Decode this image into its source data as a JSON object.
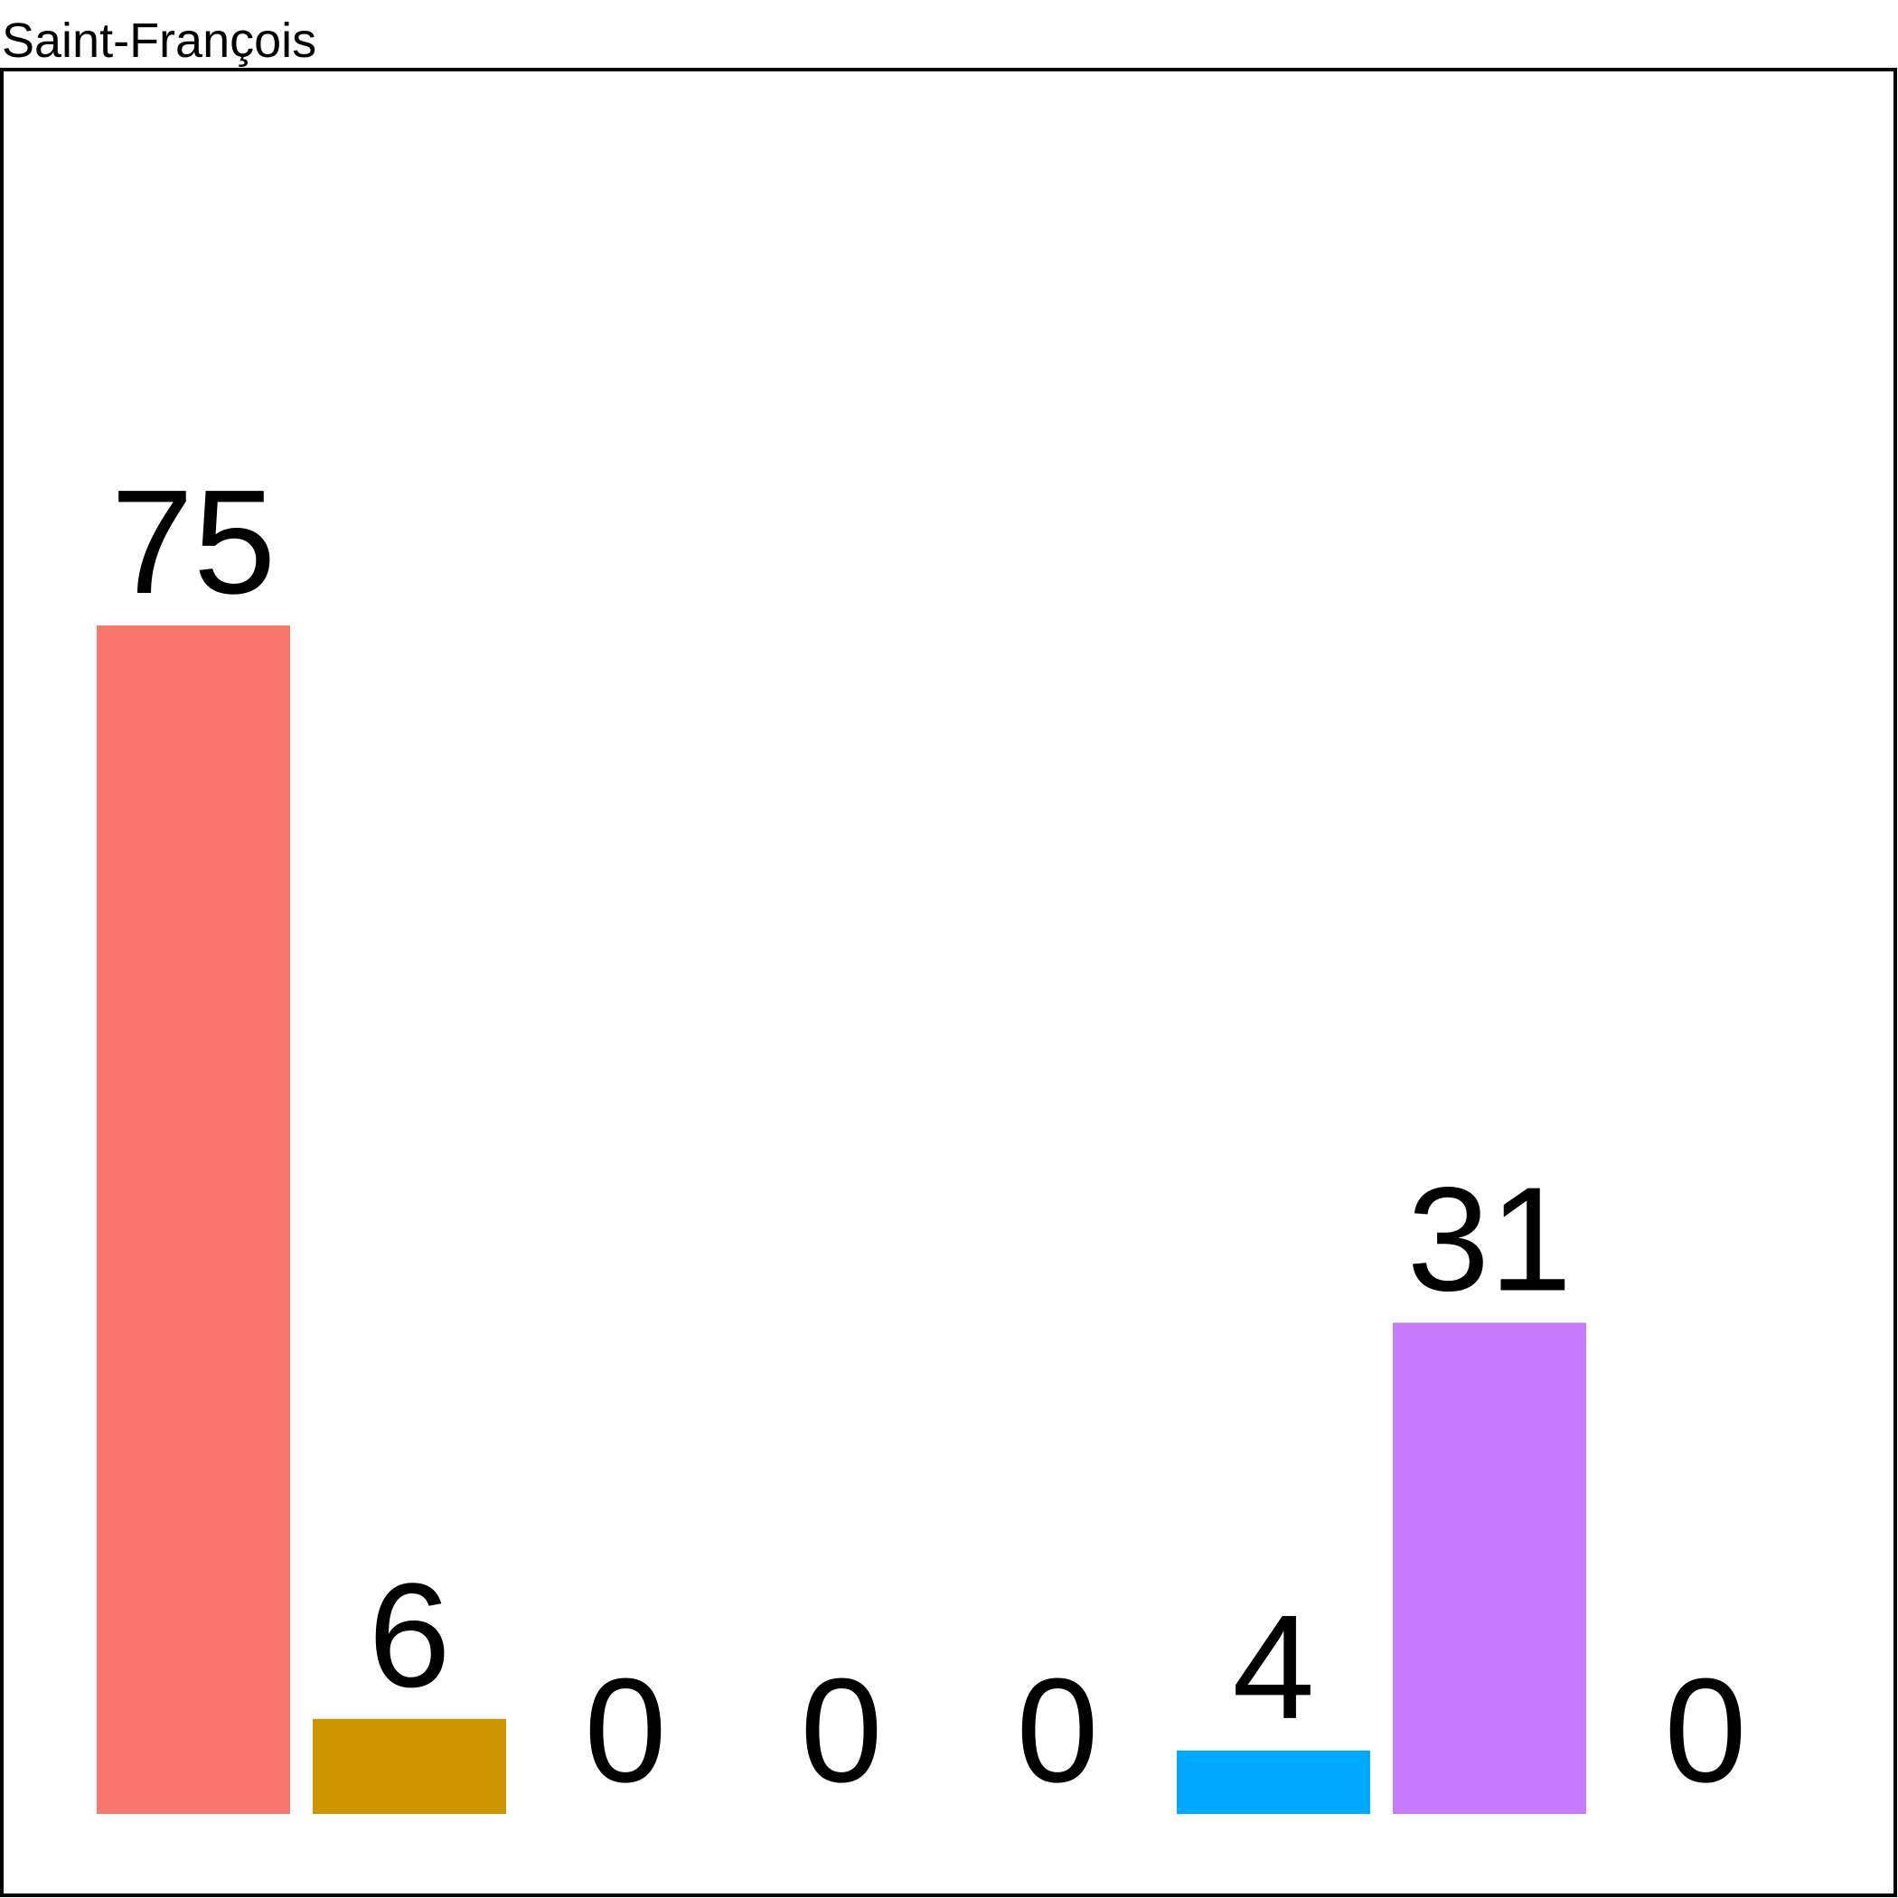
{
  "chart_data": {
    "type": "bar",
    "title": "Saint-François",
    "categories": [
      null,
      null,
      null,
      null,
      null,
      null,
      null,
      null
    ],
    "values": [
      75,
      6,
      0,
      0,
      0,
      4,
      31,
      0
    ],
    "colors": [
      "#f8766d",
      "#cd9600",
      "#7cae00",
      "#00be67",
      "#00bfc4",
      "#00a9ff",
      "#c77cff",
      "#ff61cc"
    ]
  }
}
